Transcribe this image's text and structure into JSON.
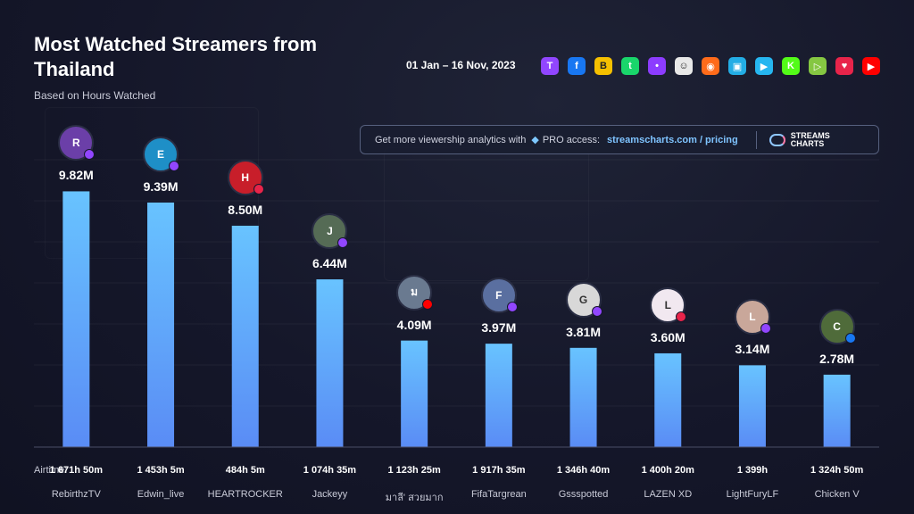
{
  "header": {
    "title": "Most Watched Streamers from Thailand",
    "subtitle": "Based on Hours Watched",
    "date_range": "01 Jan – 16 Nov, 2023"
  },
  "platforms": [
    {
      "name": "twitch-icon",
      "color": "#9146ff",
      "glyph": "T"
    },
    {
      "name": "facebook-icon",
      "color": "#1877f2",
      "glyph": "f"
    },
    {
      "name": "booyah-icon",
      "color": "#f6c000",
      "glyph": "B"
    },
    {
      "name": "trovo-icon",
      "color": "#19d66b",
      "glyph": "t"
    },
    {
      "name": "kick-like-purple-icon",
      "color": "#8c3cff",
      "glyph": "•"
    },
    {
      "name": "ghost-icon",
      "color": "#e8e8e8",
      "glyph": "☺"
    },
    {
      "name": "afreeca-icon",
      "color": "#ff6b1a",
      "glyph": "◉"
    },
    {
      "name": "bilibili-icon",
      "color": "#23ade5",
      "glyph": "▣"
    },
    {
      "name": "camera-icon",
      "color": "#26b6f0",
      "glyph": "▶"
    },
    {
      "name": "kick-icon",
      "color": "#53fc18",
      "glyph": "K"
    },
    {
      "name": "rumble-icon",
      "color": "#85c742",
      "glyph": "▷"
    },
    {
      "name": "heart-icon",
      "color": "#e8244a",
      "glyph": "♥"
    },
    {
      "name": "youtube-icon",
      "color": "#ff0000",
      "glyph": "▶"
    }
  ],
  "banner": {
    "text": "Get more viewership analytics with",
    "pro": "PRO access:",
    "link": "streamscharts.com / pricing",
    "logo_line1": "STREAMS",
    "logo_line2": "CHARTS"
  },
  "airtime_label": "Airtime:",
  "colors": {
    "bar_top": "#68c3ff",
    "bar_bottom": "#5a8cf5",
    "twitch": "#9146ff",
    "youtube": "#ff0000",
    "facebook": "#1877f2",
    "heart": "#e8244a"
  },
  "chart_data": {
    "type": "bar",
    "title": "Most Watched Streamers from Thailand",
    "subtitle": "Based on Hours Watched",
    "categories": [
      "RebirthzTV",
      "Edwin_live",
      "HEARTROCKER",
      "Jackeyy",
      "มาลี' สวยมาก",
      "FifaTargrean",
      "Gssspotted",
      "LAZEN XD",
      "LightFuryLF",
      "Chicken V"
    ],
    "values": [
      9.82,
      9.39,
      8.5,
      6.44,
      4.09,
      3.97,
      3.81,
      3.6,
      3.14,
      2.78
    ],
    "value_labels": [
      "9.82M",
      "9.39M",
      "8.50M",
      "6.44M",
      "4.09M",
      "3.97M",
      "3.81M",
      "3.60M",
      "3.14M",
      "2.78M"
    ],
    "airtime": [
      "1 671h 50m",
      "1 453h 5m",
      "484h 5m",
      "1 074h 35m",
      "1 123h 25m",
      "1 917h 35m",
      "1 346h 40m",
      "1 400h 20m",
      "1 399h",
      "1 324h 50m"
    ],
    "platform": [
      "twitch",
      "twitch",
      "heart",
      "twitch",
      "youtube",
      "twitch",
      "twitch",
      "heart",
      "twitch",
      "facebook"
    ],
    "avatar_colors": [
      "#6b3fa8",
      "#1e8fc7",
      "#c81e2a",
      "#556b55",
      "#6a7a90",
      "#5a6fa0",
      "#d8d8d8",
      "#f1e8f0",
      "#c9a79a",
      "#4f6b3a"
    ],
    "avatar_initials": [
      "R",
      "E",
      "H",
      "J",
      "ม",
      "F",
      "G",
      "L",
      "L",
      "C"
    ],
    "xlabel": "",
    "ylabel": "",
    "ylim": [
      0,
      11
    ],
    "grid": true,
    "legend": "none"
  }
}
